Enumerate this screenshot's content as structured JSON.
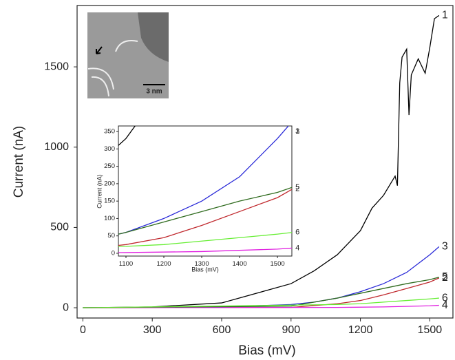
{
  "chart_data": {
    "type": "line",
    "xlabel": "Bias (mV)",
    "ylabel": "Current (nA)",
    "xlim": [
      -25,
      1600
    ],
    "ylim": [
      -64,
      1882
    ],
    "xticks": [
      0,
      300,
      600,
      900,
      1200,
      1500
    ],
    "yticks": [
      0,
      500,
      1000,
      1500
    ],
    "series": [
      {
        "name": "1",
        "color": "#000000",
        "x": [
          0,
          300,
          600,
          900,
          1000,
          1100,
          1200,
          1250,
          1300,
          1350,
          1360,
          1370,
          1380,
          1400,
          1410,
          1420,
          1450,
          1480,
          1500,
          1520,
          1540
        ],
        "values": [
          0,
          5,
          30,
          150,
          230,
          330,
          480,
          620,
          700,
          820,
          760,
          1400,
          1560,
          1610,
          1200,
          1450,
          1550,
          1460,
          1620,
          1800,
          1820
        ]
      },
      {
        "name": "2",
        "color": "#c0282d",
        "x": [
          0,
          900,
          1100,
          1200,
          1300,
          1400,
          1500,
          1540
        ],
        "values": [
          0,
          2,
          25,
          45,
          80,
          120,
          160,
          185
        ]
      },
      {
        "name": "3",
        "color": "#2a2ad8",
        "x": [
          0,
          600,
          900,
          1000,
          1100,
          1200,
          1300,
          1400,
          1500,
          1540
        ],
        "values": [
          0,
          5,
          20,
          35,
          60,
          100,
          150,
          220,
          330,
          380
        ]
      },
      {
        "name": "4",
        "color": "#e020e0",
        "x": [
          0,
          1100,
          1300,
          1500,
          1540
        ],
        "values": [
          0,
          2,
          5,
          12,
          15
        ]
      },
      {
        "name": "5",
        "color": "#2f6b1e",
        "x": [
          0,
          900,
          1100,
          1200,
          1300,
          1400,
          1500,
          1540
        ],
        "values": [
          0,
          10,
          60,
          90,
          120,
          150,
          175,
          190
        ]
      },
      {
        "name": "6",
        "color": "#66ee33",
        "x": [
          0,
          1100,
          1200,
          1300,
          1400,
          1500,
          1540
        ],
        "values": [
          0,
          20,
          25,
          35,
          45,
          55,
          60
        ]
      }
    ],
    "inset": {
      "xlabel": "Bias (mV)",
      "ylabel": "Current (nA)",
      "xlim": [
        1080,
        1538
      ],
      "ylim": [
        -8,
        366
      ],
      "xticks": [
        1100,
        1200,
        1300,
        1400,
        1500
      ],
      "yticks": [
        0,
        50,
        100,
        150,
        200,
        250,
        300,
        350
      ]
    },
    "image_scalebar": "3 nm"
  }
}
